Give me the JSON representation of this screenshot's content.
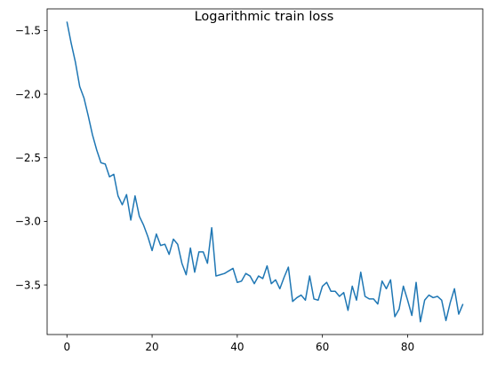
{
  "chart_data": {
    "type": "line",
    "title": "Logarithmic train loss",
    "xlabel": "",
    "ylabel": "",
    "xlim": [
      -4.65,
      97.65
    ],
    "ylim": [
      -3.89,
      -1.33
    ],
    "xticks": [
      0,
      20,
      40,
      60,
      80
    ],
    "yticks": [
      -1.5,
      -2.0,
      -2.5,
      -3.0,
      -3.5
    ],
    "ytick_labels": [
      "−1.5",
      "−2.0",
      "−2.5",
      "−3.0",
      "−3.5"
    ],
    "grid": false,
    "line_color": "#1f77b4",
    "series": [
      {
        "x": [
          0,
          1,
          2,
          3,
          4,
          5,
          6,
          7,
          8,
          9,
          10,
          11,
          12,
          13,
          14,
          15,
          16,
          17,
          18,
          19,
          20,
          21,
          22,
          23,
          24,
          25,
          26,
          27,
          28,
          29,
          30,
          31,
          32,
          33,
          34,
          35,
          36,
          37,
          38,
          39,
          40,
          41,
          42,
          43,
          44,
          45,
          46,
          47,
          48,
          49,
          50,
          51,
          52,
          53,
          54,
          55,
          56,
          57,
          58,
          59,
          60,
          61,
          62,
          63,
          64,
          65,
          66,
          67,
          68,
          69,
          70,
          71,
          72,
          73,
          74,
          75,
          76,
          77,
          78,
          79,
          80,
          81,
          82,
          83,
          84,
          85,
          86,
          87,
          88,
          89,
          90,
          91,
          92,
          93
        ],
        "values": [
          -1.43,
          -1.6,
          -1.75,
          -1.94,
          -2.03,
          -2.17,
          -2.32,
          -2.44,
          -2.54,
          -2.55,
          -2.65,
          -2.63,
          -2.8,
          -2.87,
          -2.79,
          -2.99,
          -2.8,
          -2.96,
          -3.03,
          -3.12,
          -3.23,
          -3.1,
          -3.19,
          -3.18,
          -3.26,
          -3.14,
          -3.18,
          -3.33,
          -3.42,
          -3.21,
          -3.4,
          -3.24,
          -3.24,
          -3.33,
          -3.05,
          -3.43,
          -3.42,
          -3.41,
          -3.39,
          -3.37,
          -3.48,
          -3.47,
          -3.41,
          -3.43,
          -3.49,
          -3.43,
          -3.45,
          -3.35,
          -3.49,
          -3.46,
          -3.53,
          -3.44,
          -3.36,
          -3.63,
          -3.6,
          -3.58,
          -3.62,
          -3.43,
          -3.61,
          -3.62,
          -3.51,
          -3.48,
          -3.55,
          -3.55,
          -3.59,
          -3.56,
          -3.7,
          -3.51,
          -3.62,
          -3.4,
          -3.59,
          -3.61,
          -3.61,
          -3.65,
          -3.47,
          -3.53,
          -3.46,
          -3.75,
          -3.69,
          -3.51,
          -3.62,
          -3.74,
          -3.48,
          -3.79,
          -3.62,
          -3.58,
          -3.6,
          -3.59,
          -3.62,
          -3.78,
          -3.64,
          -3.53,
          -3.73,
          -3.65
        ]
      }
    ]
  }
}
